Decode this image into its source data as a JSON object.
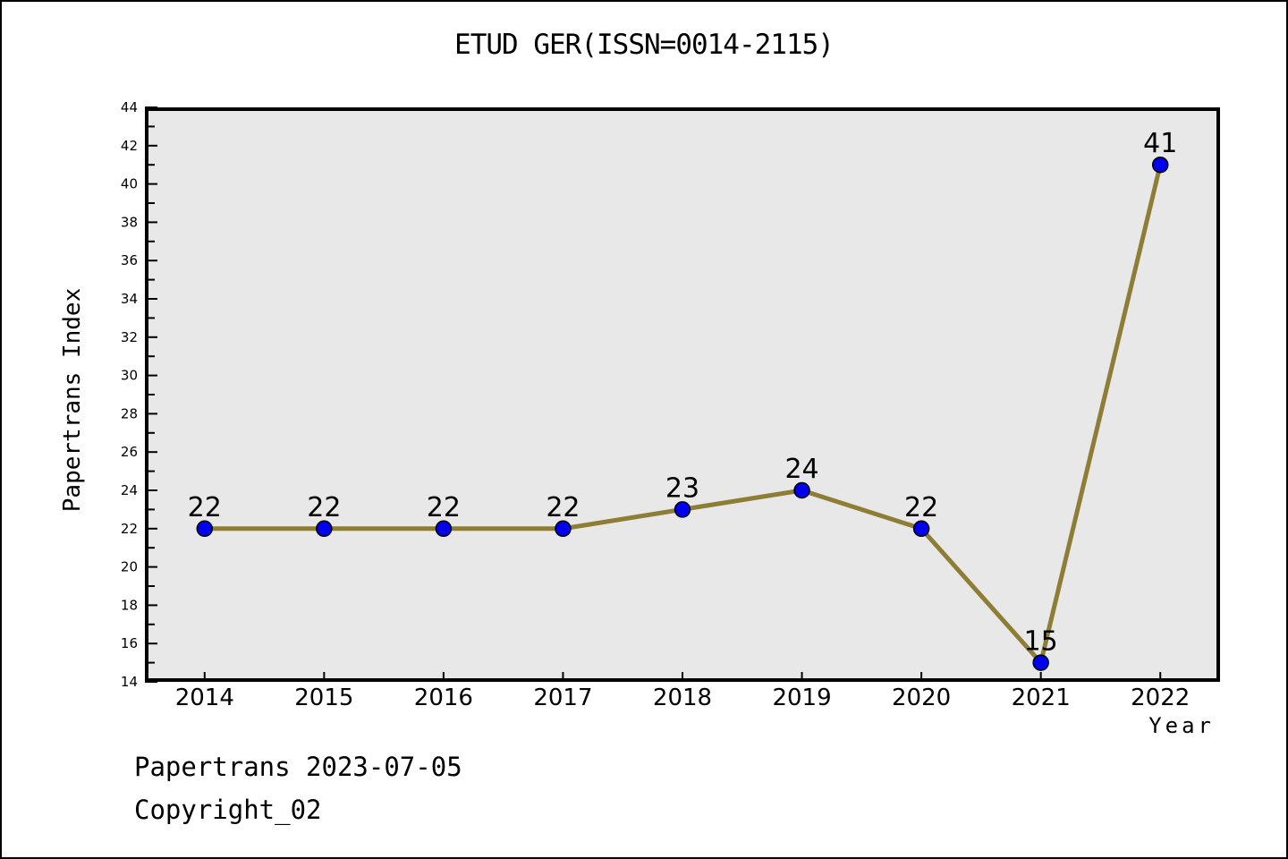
{
  "title": "ETUD GER(ISSN=0014-2115)",
  "footer": {
    "line1": "Papertrans 2023-07-05",
    "line2": "Copyright_02"
  },
  "chart_data": {
    "type": "line",
    "title": "ETUD GER(ISSN=0014-2115)",
    "xlabel": "Year",
    "ylabel": "Papertrans Index",
    "categories": [
      "2014",
      "2015",
      "2016",
      "2017",
      "2018",
      "2019",
      "2020",
      "2021",
      "2022"
    ],
    "series": [
      {
        "name": "Papertrans Index",
        "values": [
          22,
          22,
          22,
          22,
          23,
          24,
          22,
          15,
          41
        ]
      }
    ],
    "point_labels": [
      22,
      22,
      22,
      22,
      23,
      24,
      22,
      15,
      41
    ],
    "ylim": [
      14,
      44
    ],
    "ytick_major_step": 2,
    "ytick_minor_step": 1,
    "xlim_padding": 0.5,
    "grid": false,
    "legend": false,
    "colors": {
      "line": "#8e7d34",
      "marker_fill": "#0000ee",
      "marker_edge": "#000000",
      "plot_background": "#e8e8e8",
      "figure_background": "#ffffff",
      "axis": "#000000",
      "text": "#000000"
    }
  }
}
